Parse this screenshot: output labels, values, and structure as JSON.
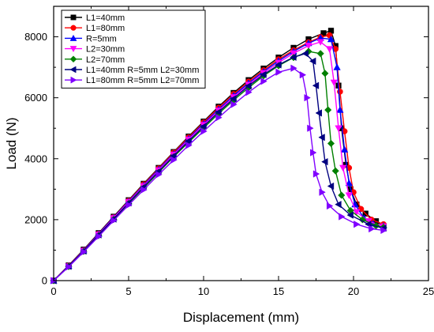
{
  "chart_data": {
    "type": "line",
    "title": "",
    "xlabel": "Displacement (mm)",
    "ylabel": "Load (N)",
    "xlim": [
      0,
      25
    ],
    "ylim": [
      0,
      9000
    ],
    "x_ticks": [
      0,
      5,
      10,
      15,
      20,
      25
    ],
    "y_ticks": [
      0,
      2000,
      4000,
      6000,
      8000
    ],
    "x_tick_labels": [
      "0",
      "5",
      "10",
      "15",
      "20",
      "25"
    ],
    "y_tick_labels": [
      "0",
      "2000",
      "4000",
      "6000",
      "8000"
    ],
    "grid": false,
    "legend_position": "top-left",
    "series": [
      {
        "name": "L1=40mm",
        "color": "#000000",
        "marker": "square",
        "points": [
          [
            0,
            0
          ],
          [
            1,
            500
          ],
          [
            2,
            1020
          ],
          [
            3,
            1560
          ],
          [
            4,
            2100
          ],
          [
            5,
            2640
          ],
          [
            6,
            3180
          ],
          [
            7,
            3700
          ],
          [
            8,
            4220
          ],
          [
            9,
            4730
          ],
          [
            10,
            5220
          ],
          [
            11,
            5710
          ],
          [
            12,
            6160
          ],
          [
            13,
            6580
          ],
          [
            14,
            6960
          ],
          [
            15,
            7320
          ],
          [
            16,
            7640
          ],
          [
            17,
            7920
          ],
          [
            18,
            8120
          ],
          [
            18.5,
            8200
          ],
          [
            18.8,
            7700
          ],
          [
            19.0,
            6400
          ],
          [
            19.2,
            5000
          ],
          [
            19.5,
            3800
          ],
          [
            19.8,
            3000
          ],
          [
            20.2,
            2500
          ],
          [
            20.8,
            2200
          ],
          [
            21.5,
            1950
          ],
          [
            22,
            1800
          ]
        ]
      },
      {
        "name": "L1=80mm",
        "color": "#ff0000",
        "marker": "circle",
        "points": [
          [
            0,
            0
          ],
          [
            1,
            490
          ],
          [
            2,
            1000
          ],
          [
            3,
            1540
          ],
          [
            4,
            2080
          ],
          [
            5,
            2620
          ],
          [
            6,
            3160
          ],
          [
            7,
            3680
          ],
          [
            8,
            4200
          ],
          [
            9,
            4700
          ],
          [
            10,
            5190
          ],
          [
            11,
            5670
          ],
          [
            12,
            6120
          ],
          [
            13,
            6530
          ],
          [
            14,
            6900
          ],
          [
            15,
            7260
          ],
          [
            16,
            7560
          ],
          [
            17,
            7820
          ],
          [
            17.8,
            7990
          ],
          [
            18.4,
            8050
          ],
          [
            18.8,
            7600
          ],
          [
            19.1,
            6200
          ],
          [
            19.4,
            4900
          ],
          [
            19.7,
            3700
          ],
          [
            20.0,
            2900
          ],
          [
            20.5,
            2350
          ],
          [
            21.2,
            2000
          ],
          [
            22,
            1850
          ]
        ]
      },
      {
        "name": "R=5mm",
        "color": "#0000ff",
        "marker": "triangle-up",
        "points": [
          [
            0,
            0
          ],
          [
            1,
            480
          ],
          [
            2,
            990
          ],
          [
            3,
            1530
          ],
          [
            4,
            2070
          ],
          [
            5,
            2600
          ],
          [
            6,
            3130
          ],
          [
            7,
            3650
          ],
          [
            8,
            4160
          ],
          [
            9,
            4660
          ],
          [
            10,
            5150
          ],
          [
            11,
            5620
          ],
          [
            12,
            6070
          ],
          [
            13,
            6480
          ],
          [
            14,
            6860
          ],
          [
            15,
            7210
          ],
          [
            16,
            7520
          ],
          [
            17,
            7790
          ],
          [
            17.8,
            7960
          ],
          [
            18.5,
            7920
          ],
          [
            18.9,
            7000
          ],
          [
            19.1,
            5600
          ],
          [
            19.4,
            4300
          ],
          [
            19.7,
            3200
          ],
          [
            20.1,
            2500
          ],
          [
            20.7,
            2050
          ],
          [
            21.3,
            1870
          ],
          [
            22,
            1800
          ]
        ]
      },
      {
        "name": "L2=30mm",
        "color": "#ff00ff",
        "marker": "triangle-down",
        "points": [
          [
            0,
            0
          ],
          [
            1,
            470
          ],
          [
            2,
            980
          ],
          [
            3,
            1510
          ],
          [
            4,
            2050
          ],
          [
            5,
            2580
          ],
          [
            6,
            3100
          ],
          [
            7,
            3620
          ],
          [
            8,
            4130
          ],
          [
            9,
            4630
          ],
          [
            10,
            5110
          ],
          [
            11,
            5580
          ],
          [
            12,
            6020
          ],
          [
            13,
            6430
          ],
          [
            14,
            6810
          ],
          [
            15,
            7150
          ],
          [
            16,
            7460
          ],
          [
            17,
            7710
          ],
          [
            17.8,
            7830
          ],
          [
            18.4,
            7600
          ],
          [
            18.7,
            6500
          ],
          [
            19.0,
            5000
          ],
          [
            19.3,
            3700
          ],
          [
            19.7,
            2800
          ],
          [
            20.2,
            2250
          ],
          [
            21.0,
            1950
          ],
          [
            22,
            1780
          ]
        ]
      },
      {
        "name": "L2=70mm",
        "color": "#008000",
        "marker": "diamond",
        "points": [
          [
            0,
            0
          ],
          [
            1,
            460
          ],
          [
            2,
            960
          ],
          [
            3,
            1480
          ],
          [
            4,
            2010
          ],
          [
            5,
            2530
          ],
          [
            6,
            3040
          ],
          [
            7,
            3550
          ],
          [
            8,
            4060
          ],
          [
            9,
            4540
          ],
          [
            10,
            5010
          ],
          [
            11,
            5480
          ],
          [
            12,
            5920
          ],
          [
            13,
            6330
          ],
          [
            14,
            6720
          ],
          [
            15,
            7050
          ],
          [
            16,
            7320
          ],
          [
            17,
            7520
          ],
          [
            17.8,
            7450
          ],
          [
            18.1,
            6800
          ],
          [
            18.3,
            5600
          ],
          [
            18.5,
            4500
          ],
          [
            18.8,
            3600
          ],
          [
            19.2,
            2800
          ],
          [
            19.8,
            2300
          ],
          [
            20.6,
            2000
          ],
          [
            21.5,
            1800
          ],
          [
            22,
            1750
          ]
        ]
      },
      {
        "name": "L1=40mm R=5mm L2=30mm",
        "color": "#000080",
        "marker": "triangle-left",
        "points": [
          [
            0,
            0
          ],
          [
            1,
            470
          ],
          [
            2,
            970
          ],
          [
            3,
            1500
          ],
          [
            4,
            2020
          ],
          [
            5,
            2550
          ],
          [
            6,
            3070
          ],
          [
            7,
            3580
          ],
          [
            8,
            4090
          ],
          [
            9,
            4580
          ],
          [
            10,
            5060
          ],
          [
            11,
            5530
          ],
          [
            12,
            5970
          ],
          [
            13,
            6390
          ],
          [
            14,
            6760
          ],
          [
            15,
            7080
          ],
          [
            16,
            7330
          ],
          [
            16.8,
            7450
          ],
          [
            17.3,
            7200
          ],
          [
            17.5,
            6400
          ],
          [
            17.7,
            5500
          ],
          [
            17.9,
            4700
          ],
          [
            18.1,
            3900
          ],
          [
            18.5,
            3100
          ],
          [
            19.0,
            2500
          ],
          [
            19.8,
            2150
          ],
          [
            21.0,
            1850
          ],
          [
            22,
            1720
          ]
        ]
      },
      {
        "name": "L1=80mm R=5mm L2=70mm",
        "color": "#8000ff",
        "marker": "triangle-right",
        "points": [
          [
            0,
            0
          ],
          [
            1,
            450
          ],
          [
            2,
            940
          ],
          [
            3,
            1450
          ],
          [
            4,
            1970
          ],
          [
            5,
            2480
          ],
          [
            6,
            2980
          ],
          [
            7,
            3480
          ],
          [
            8,
            3960
          ],
          [
            9,
            4440
          ],
          [
            10,
            4900
          ],
          [
            11,
            5350
          ],
          [
            12,
            5780
          ],
          [
            13,
            6180
          ],
          [
            14,
            6540
          ],
          [
            15,
            6840
          ],
          [
            16,
            6970
          ],
          [
            16.6,
            6750
          ],
          [
            16.9,
            6000
          ],
          [
            17.1,
            5000
          ],
          [
            17.3,
            4200
          ],
          [
            17.5,
            3500
          ],
          [
            17.9,
            2900
          ],
          [
            18.4,
            2450
          ],
          [
            19.2,
            2100
          ],
          [
            20.2,
            1850
          ],
          [
            21.2,
            1700
          ],
          [
            22,
            1650
          ]
        ]
      }
    ]
  }
}
